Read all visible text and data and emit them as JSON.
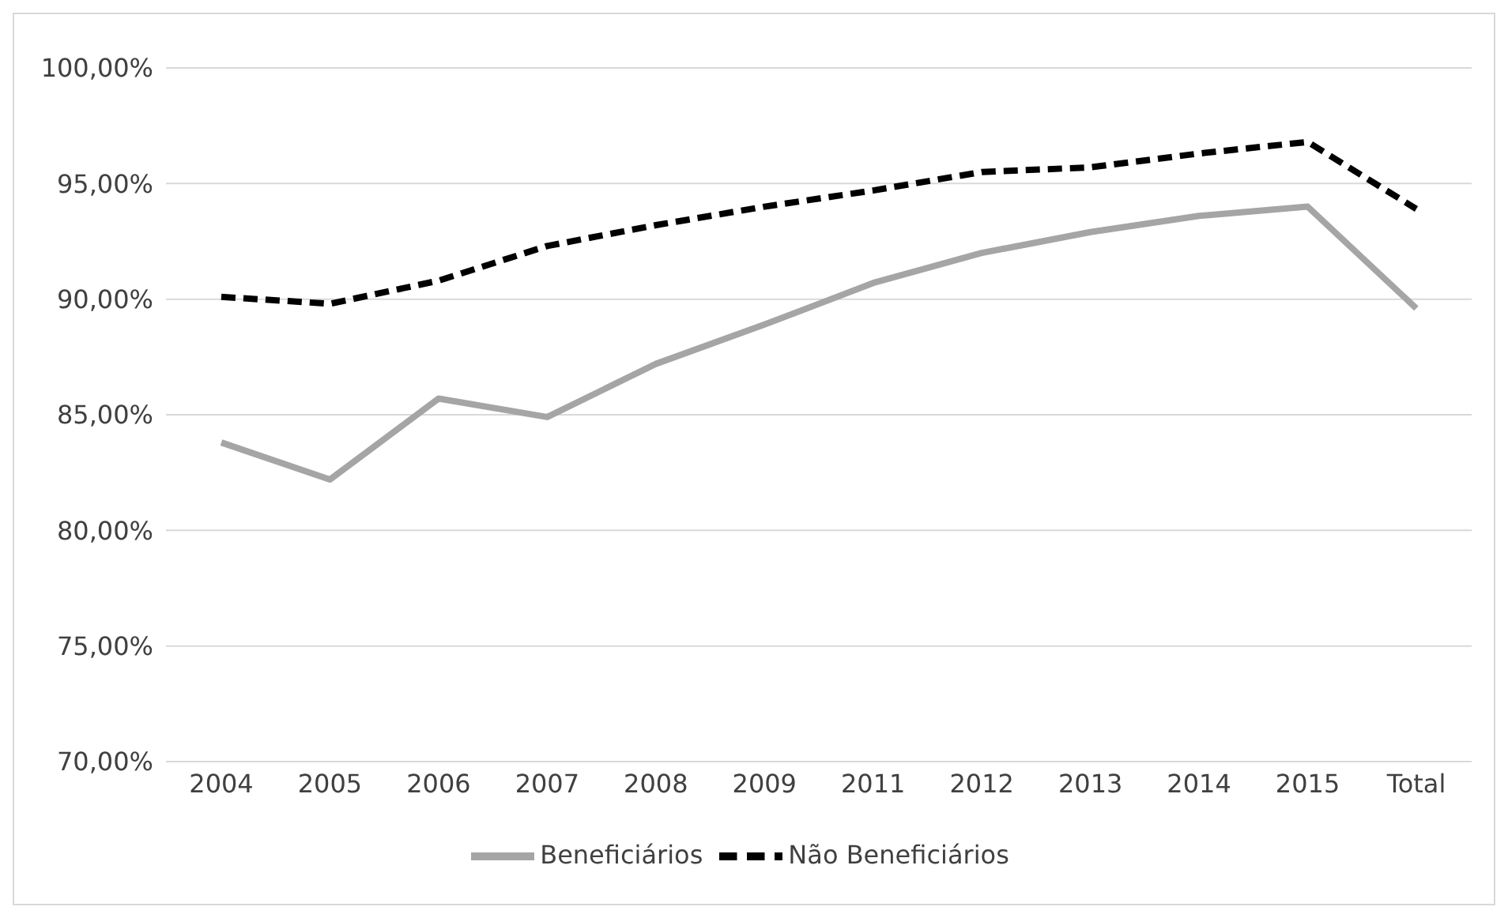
{
  "chart_data": {
    "type": "line",
    "categories": [
      "2004",
      "2005",
      "2006",
      "2007",
      "2008",
      "2009",
      "2011",
      "2012",
      "2013",
      "2014",
      "2015",
      "Total"
    ],
    "series": [
      {
        "name": "Não Beneficiários",
        "color": "#000000",
        "line_style": "dashed",
        "values": [
          90.1,
          89.8,
          90.8,
          92.3,
          93.2,
          94.0,
          94.7,
          95.5,
          95.7,
          96.3,
          96.8,
          93.9
        ]
      },
      {
        "name": "Beneficiários",
        "color": "#a5a5a5",
        "line_style": "solid",
        "values": [
          83.8,
          82.2,
          85.7,
          84.9,
          87.2,
          88.9,
          90.7,
          92.0,
          92.9,
          93.6,
          94.0,
          89.6
        ]
      }
    ],
    "ylim": [
      70,
      100
    ],
    "yticks": [
      {
        "value": 70,
        "label": "70,00%"
      },
      {
        "value": 75,
        "label": "75,00%"
      },
      {
        "value": 80,
        "label": "80,00%"
      },
      {
        "value": 85,
        "label": "85,00%"
      },
      {
        "value": 90,
        "label": "90,00%"
      },
      {
        "value": 95,
        "label": "95,00%"
      },
      {
        "value": 100,
        "label": "100,00%"
      }
    ],
    "grid": "y",
    "legend": "bottom",
    "marker": "none"
  }
}
